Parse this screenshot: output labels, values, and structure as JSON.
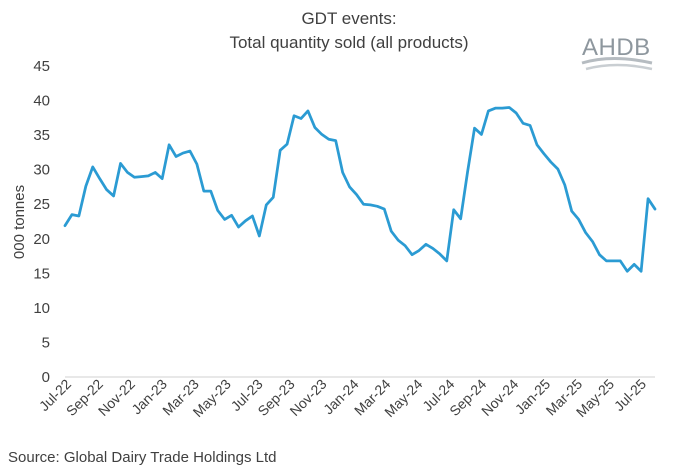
{
  "chart_data": {
    "type": "line",
    "title": "GDT events:",
    "subtitle": "Total quantity sold (all products)",
    "ylabel": "000 tonnes",
    "xlabel": "",
    "ylim": [
      0,
      45
    ],
    "yticks": [
      0,
      5,
      10,
      15,
      20,
      25,
      30,
      35,
      40,
      45
    ],
    "xtick_labels": [
      "Jul-22",
      "Sep-22",
      "Nov-22",
      "Jan-23",
      "Mar-23",
      "May-23",
      "Jul-23",
      "Sep-23",
      "Nov-23",
      "Jan-24",
      "Mar-24",
      "May-24",
      "Jul-24",
      "Sep-24",
      "Nov-24",
      "Jan-25",
      "Mar-25",
      "May-25",
      "Jul-25"
    ],
    "series": [
      {
        "name": "Total quantity sold",
        "color": "#2b9bd3",
        "values": [
          21.9,
          23.5,
          23.3,
          27.6,
          30.4,
          28.7,
          27.1,
          26.2,
          30.9,
          29.6,
          28.9,
          29.0,
          29.1,
          29.6,
          28.7,
          33.6,
          31.9,
          32.4,
          32.7,
          30.8,
          26.9,
          26.9,
          24.1,
          22.8,
          23.4,
          21.7,
          22.6,
          23.3,
          20.4,
          24.9,
          26.0,
          32.8,
          33.7,
          37.8,
          37.4,
          38.5,
          36.1,
          35.1,
          34.4,
          34.2,
          29.6,
          27.5,
          26.4,
          25.0,
          24.9,
          24.7,
          24.3,
          21.1,
          19.8,
          19.0,
          17.7,
          18.3,
          19.2,
          18.6,
          17.8,
          16.8,
          24.2,
          22.9,
          29.7,
          36.0,
          35.1,
          38.5,
          38.9,
          38.9,
          39.0,
          38.2,
          36.7,
          36.4,
          33.6,
          32.3,
          31.1,
          30.1,
          27.8,
          24.0,
          22.8,
          20.9,
          19.6,
          17.7,
          16.8,
          16.8,
          16.8,
          15.3,
          16.3,
          15.3,
          25.8,
          24.3
        ]
      }
    ]
  },
  "footer": {
    "source": "Source: Global Dairy Trade Holdings Ltd"
  },
  "logo": {
    "text": "AHDB"
  }
}
